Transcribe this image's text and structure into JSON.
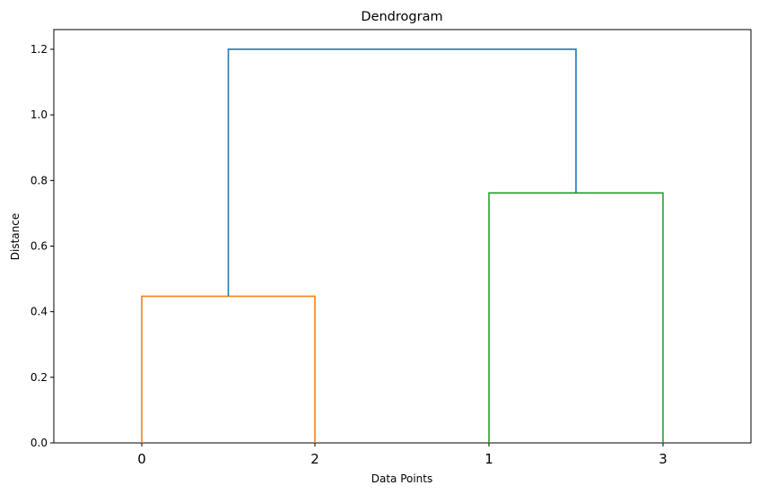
{
  "chart_data": {
    "type": "dendrogram",
    "title": "Dendrogram",
    "xlabel": "Data Points",
    "ylabel": "Distance",
    "leaf_order": [
      "0",
      "2",
      "1",
      "3"
    ],
    "ylim": [
      0,
      1.26
    ],
    "yticks": [
      "0.0",
      "0.2",
      "0.4",
      "0.6",
      "0.8",
      "1.0",
      "1.2"
    ],
    "links": [
      {
        "left": "0",
        "right": "2",
        "height": 0.447,
        "color": "#ff7f0e"
      },
      {
        "left": "1",
        "right": "3",
        "height": 0.762,
        "color": "#2ca02c"
      },
      {
        "left": "cluster(0,2)",
        "right": "cluster(1,3)",
        "height": 1.2,
        "color": "#1f77b4"
      }
    ],
    "grid": false,
    "legend": "none"
  }
}
